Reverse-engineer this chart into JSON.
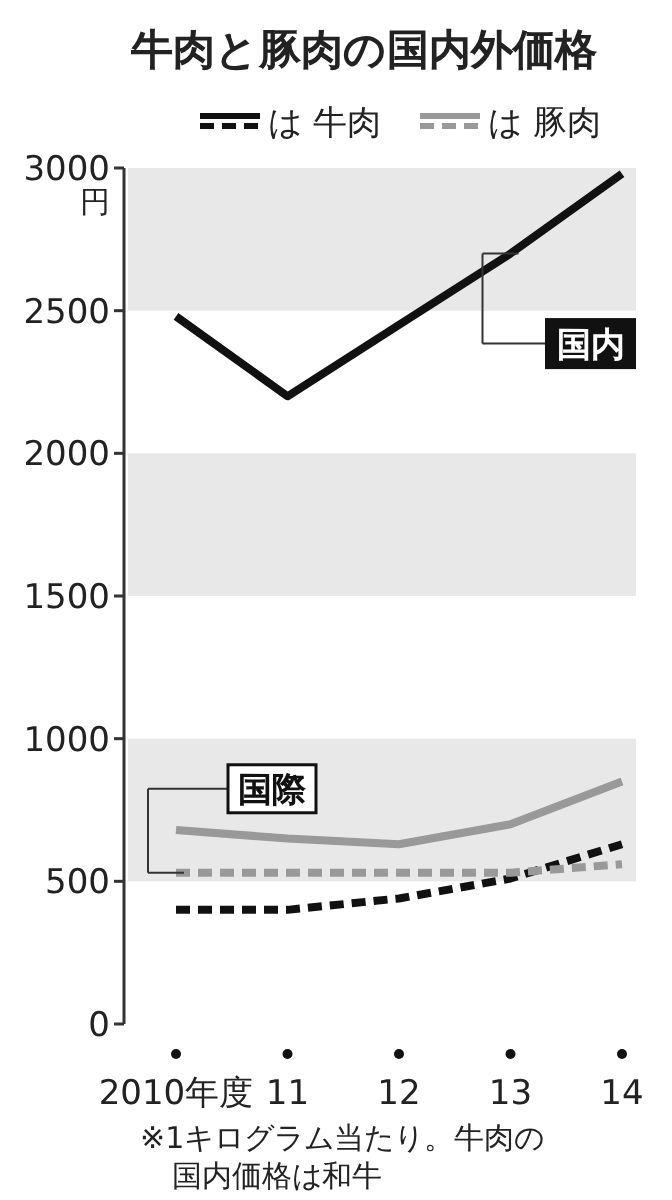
{
  "chart_data": {
    "type": "line",
    "title": "牛肉と豚肉の国内外価格",
    "ylabel": "円",
    "categories": [
      "2010年度",
      "11",
      "12",
      "13",
      "14"
    ],
    "ylim": [
      0,
      3000
    ],
    "yticks": [
      0,
      500,
      1000,
      1500,
      2000,
      2500,
      3000
    ],
    "series": [
      {
        "name": "は 牛肉",
        "color": "#111111",
        "line_style": "solid",
        "values": [
          2480,
          2200,
          2450,
          2700,
          2980
        ]
      },
      {
        "name": "は 豚肉",
        "color": "#999999",
        "line_style": "solid",
        "values": [
          680,
          650,
          630,
          700,
          850
        ]
      },
      {
        "color": "#111111",
        "line_style": "dashed",
        "values": [
          400,
          400,
          440,
          510,
          630
        ]
      },
      {
        "color": "#999999",
        "line_style": "dashed",
        "values": [
          530,
          530,
          530,
          530,
          560
        ]
      }
    ],
    "bands": [
      {
        "axis": "y",
        "from": 2500,
        "to": 3000,
        "color": "#e8e8e8"
      },
      {
        "axis": "y",
        "from": 1500,
        "to": 2000,
        "color": "#e8e8e8"
      },
      {
        "axis": "y",
        "from": 500,
        "to": 1000,
        "color": "#e8e8e8"
      }
    ],
    "annotations": [
      {
        "text": "国内",
        "x": "13",
        "y": 2700
      },
      {
        "text": "国際",
        "x": "2010年度",
        "y": 530
      },
      "※1キログラム当たり。牛肉の国内価格は和牛"
    ],
    "legend": "top",
    "grid": false,
    "marker": "none"
  }
}
